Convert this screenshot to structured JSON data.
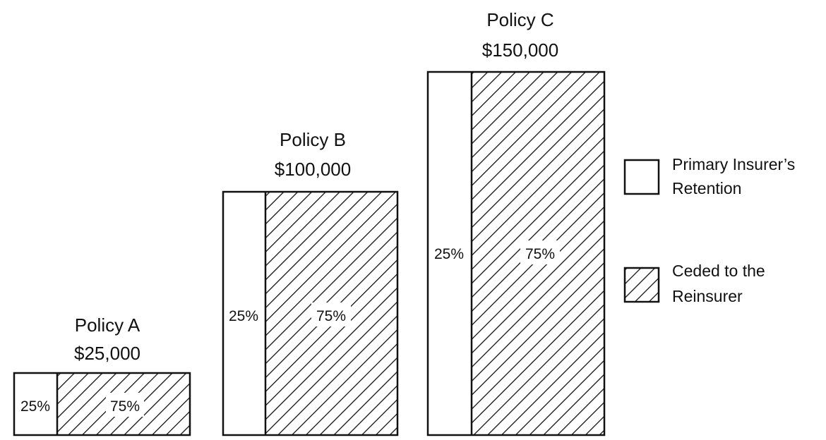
{
  "colors": {
    "ink": "#111111",
    "paper": "#ffffff"
  },
  "policies": [
    {
      "name": "Policy A",
      "amount": "$25,000",
      "amount_value": 25000,
      "retention_label": "25%",
      "ceded_label": "75%",
      "retention_share": 0.25,
      "ceded_share": 0.75
    },
    {
      "name": "Policy B",
      "amount": "$100,000",
      "amount_value": 100000,
      "retention_label": "25%",
      "ceded_label": "75%",
      "retention_share": 0.25,
      "ceded_share": 0.75
    },
    {
      "name": "Policy C",
      "amount": "$150,000",
      "amount_value": 150000,
      "retention_label": "25%",
      "ceded_label": "75%",
      "retention_share": 0.25,
      "ceded_share": 0.75
    }
  ],
  "legend": {
    "retention": {
      "line1": "Primary Insurer’s",
      "line2": "Retention"
    },
    "ceded": {
      "line1": "Ceded to the",
      "line2": "Reinsurer"
    }
  }
}
